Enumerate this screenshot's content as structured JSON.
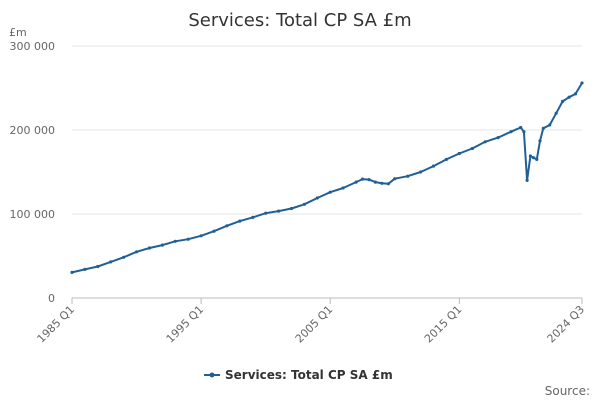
{
  "chart_data": {
    "type": "line",
    "title": "Services: Total CP SA £m",
    "ylabel": "£m",
    "ylim": [
      0,
      300000
    ],
    "y_ticks": [
      {
        "value": 0,
        "label": "0"
      },
      {
        "value": 100000,
        "label": "100 000"
      },
      {
        "value": 200000,
        "label": "200 000"
      },
      {
        "value": 300000,
        "label": "300 000"
      }
    ],
    "x_ticks": [
      "1985 Q1",
      "1995 Q1",
      "2005 Q1",
      "2015 Q1",
      "2024 Q3"
    ],
    "x_range": [
      "1985 Q1",
      "2024 Q3"
    ],
    "grid": "horizontal",
    "legend_position": "bottom-center",
    "series": [
      {
        "name": "Services: Total CP SA £m",
        "color": "#206095",
        "points": [
          [
            "1985 Q1",
            30500
          ],
          [
            "1986 Q1",
            34000
          ],
          [
            "1987 Q1",
            37500
          ],
          [
            "1988 Q1",
            43000
          ],
          [
            "1989 Q1",
            48500
          ],
          [
            "1990 Q1",
            55000
          ],
          [
            "1991 Q1",
            59500
          ],
          [
            "1992 Q1",
            63000
          ],
          [
            "1993 Q1",
            67500
          ],
          [
            "1994 Q1",
            70000
          ],
          [
            "1995 Q1",
            74000
          ],
          [
            "1996 Q1",
            79500
          ],
          [
            "1997 Q1",
            86000
          ],
          [
            "1998 Q1",
            91500
          ],
          [
            "1999 Q1",
            96000
          ],
          [
            "2000 Q1",
            101000
          ],
          [
            "2001 Q1",
            103500
          ],
          [
            "2002 Q1",
            106500
          ],
          [
            "2003 Q1",
            111500
          ],
          [
            "2004 Q1",
            119000
          ],
          [
            "2005 Q1",
            126000
          ],
          [
            "2006 Q1",
            131000
          ],
          [
            "2007 Q1",
            138000
          ],
          [
            "2007 Q3",
            141500
          ],
          [
            "2008 Q1",
            141000
          ],
          [
            "2008 Q3",
            138000
          ],
          [
            "2009 Q1",
            136500
          ],
          [
            "2009 Q3",
            136000
          ],
          [
            "2010 Q1",
            142000
          ],
          [
            "2011 Q1",
            145000
          ],
          [
            "2012 Q1",
            150000
          ],
          [
            "2013 Q1",
            157000
          ],
          [
            "2014 Q1",
            165000
          ],
          [
            "2015 Q1",
            172000
          ],
          [
            "2016 Q1",
            178000
          ],
          [
            "2017 Q1",
            186000
          ],
          [
            "2018 Q1",
            191000
          ],
          [
            "2019 Q1",
            198000
          ],
          [
            "2019 Q4",
            203000
          ],
          [
            "2020 Q1",
            198000
          ],
          [
            "2020 Q2",
            140000
          ],
          [
            "2020 Q3",
            169000
          ],
          [
            "2020 Q4",
            167000
          ],
          [
            "2021 Q1",
            165000
          ],
          [
            "2021 Q2",
            187000
          ],
          [
            "2021 Q3",
            202000
          ],
          [
            "2022 Q1",
            206000
          ],
          [
            "2022 Q3",
            220000
          ],
          [
            "2023 Q1",
            234000
          ],
          [
            "2023 Q3",
            239000
          ],
          [
            "2024 Q1",
            243000
          ],
          [
            "2024 Q3",
            256000
          ]
        ]
      }
    ]
  },
  "legend": {
    "label": "Services: Total CP SA £m"
  },
  "source": {
    "label": "Source:"
  }
}
